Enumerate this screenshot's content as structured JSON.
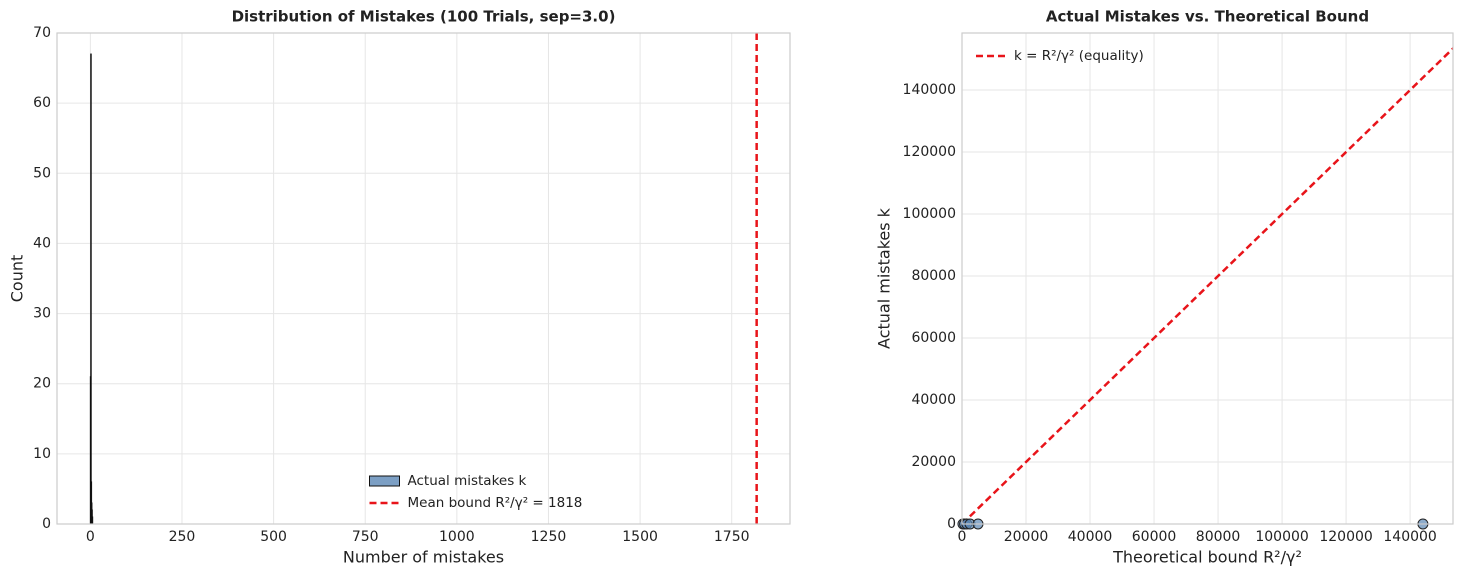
{
  "chart_data": [
    {
      "type": "histogram",
      "title": "Distribution of Mistakes (100 Trials, sep=3.0)",
      "xlabel": "Number of mistakes",
      "ylabel": "Count",
      "bins": [
        0,
        1,
        2,
        3,
        4,
        5,
        6
      ],
      "counts": [
        21,
        67,
        6,
        3,
        2,
        1
      ],
      "series_name": "Actual mistakes k",
      "color": "#5b87b5",
      "vline": {
        "x": 1818,
        "label": "Mean bound R²/γ² = 1818",
        "color": "#e8141a"
      },
      "xlim": [
        -91,
        1909
      ],
      "ylim": [
        0,
        70
      ],
      "xticks": [
        0,
        250,
        500,
        750,
        1000,
        1250,
        1500,
        1750
      ],
      "yticks": [
        0,
        10,
        20,
        30,
        40,
        50,
        60,
        70
      ],
      "grid": true,
      "legend": "lower center"
    },
    {
      "type": "scatter",
      "title": "Actual Mistakes vs. Theoretical Bound",
      "xlabel": "Theoretical bound R²/γ²",
      "ylabel": "Actual mistakes k",
      "x": [
        300,
        800,
        1500,
        2500,
        5000,
        144000
      ],
      "y": [
        1,
        1,
        2,
        1,
        3,
        2
      ],
      "color": "#5b87b5",
      "ref_line": {
        "name": "k = R²/γ² (equality)",
        "color": "#e8141a"
      },
      "xlim": [
        0,
        153400
      ],
      "ylim": [
        0,
        158400
      ],
      "xticks": [
        0,
        20000,
        40000,
        60000,
        80000,
        100000,
        120000,
        140000
      ],
      "yticks": [
        0,
        20000,
        40000,
        60000,
        80000,
        100000,
        120000,
        140000
      ],
      "grid": true,
      "legend": "upper left"
    }
  ]
}
